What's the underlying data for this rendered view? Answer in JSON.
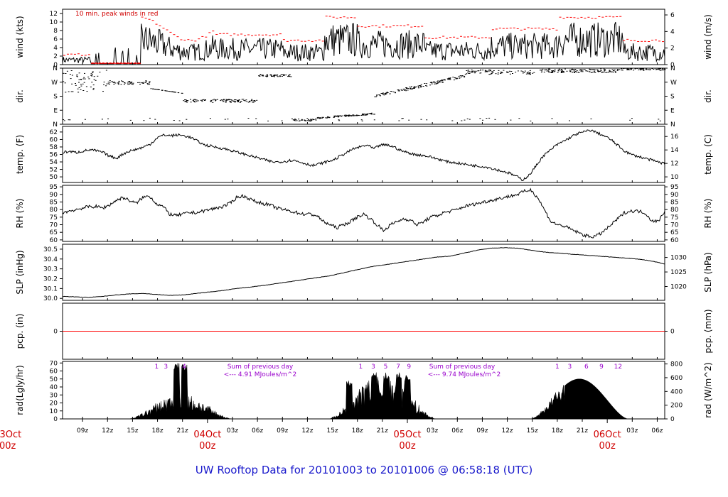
{
  "title": "UW Rooftop Data for 20101003  to  20101006 @ 06:58:18  (UTC)",
  "annotations": {
    "wind_note": "10 min. peak winds in red",
    "solar_days": [
      {
        "sum_label": "Sum of previous day",
        "value_label": "<--- 4.91 MJoules/m^2"
      },
      {
        "sum_label": "Sum of previous day",
        "value_label": "<--- 9.74 MJoules/m^2"
      }
    ],
    "hour_markers": [
      [
        "1",
        "3",
        "4"
      ],
      [
        "1",
        "3",
        "5",
        "7",
        "9"
      ],
      [
        "1",
        "3",
        "6",
        "9",
        "12"
      ]
    ]
  },
  "chart_data": {
    "type": "line",
    "x_axis": {
      "tick_labels": [
        "09z",
        "12z",
        "15z",
        "18z",
        "21z",
        "03z",
        "06z",
        "09z",
        "12z",
        "15z",
        "18z",
        "21z",
        "03z",
        "06z",
        "09z",
        "12z",
        "15z",
        "18z",
        "21z",
        "03z",
        "06z"
      ],
      "date_labels": [
        {
          "date": "03Oct",
          "hour": "00z"
        },
        {
          "date": "04Oct",
          "hour": "00z"
        },
        {
          "date": "05Oct",
          "hour": "00z"
        },
        {
          "date": "06Oct",
          "hour": "00z"
        }
      ]
    },
    "panels": [
      {
        "id": "wind",
        "ylabel_left": "wind (kts)",
        "ylabel_right": "wind (m/s)",
        "ylim": [
          0,
          13
        ],
        "left_ticks": [
          "0",
          "2",
          "4",
          "6",
          "8",
          "10",
          "12"
        ],
        "right_ticks": [
          "0",
          "2",
          "4",
          "6"
        ],
        "colors": {
          "series": "#000000",
          "peak": "#ff0000"
        }
      },
      {
        "id": "dir",
        "ylabel_left": "dir.",
        "ylabel_right": "dir.",
        "ylim": [
          0,
          360
        ],
        "left_ticks": [
          "N",
          "E",
          "S",
          "W",
          "N"
        ],
        "right_ticks": [
          "N",
          "E",
          "S",
          "W",
          "N"
        ]
      },
      {
        "id": "temp",
        "ylabel_left": "temp. (F)",
        "ylabel_right": "temp. (C)",
        "ylim": [
          48.5,
          63.5
        ],
        "left_ticks": [
          "50",
          "52",
          "54",
          "56",
          "58",
          "60",
          "62"
        ],
        "right_ticks": [
          "10",
          "12",
          "14",
          "16"
        ],
        "series": [
          {
            "values": [
              56.5,
              56.8,
              56.5,
              56.9,
              57.2,
              57.0,
              56.5,
              55.5,
              55.0,
              56.2,
              57.0,
              57.4,
              58.0,
              58.8,
              60.5,
              61.2,
              61.0,
              61.2,
              61.0,
              60.5,
              59.5,
              58.5,
              58.2,
              57.8,
              57.5,
              57.0,
              56.5,
              56.0,
              55.5,
              55.0,
              54.5,
              54.0,
              54.0,
              54.2,
              54.5,
              54.0,
              53.5,
              53.0,
              53.5,
              54.0,
              54.5,
              55.5,
              56.5,
              57.5,
              58.0,
              58.5,
              57.5,
              58.5,
              58.5,
              58.0,
              57.0,
              56.5,
              56.0,
              55.8,
              55.5,
              55.0,
              54.5,
              54.0,
              53.8,
              53.5,
              53.2,
              53.0,
              52.8,
              52.5,
              52.0,
              51.5,
              51.0,
              50.2,
              49.2,
              50.5,
              53.0,
              55.5,
              57.0,
              58.5,
              59.5,
              60.5,
              61.5,
              62.0,
              62.5,
              61.8,
              61.0,
              60.0,
              58.5,
              57.0,
              56.0,
              55.5,
              55.0,
              54.5,
              54.0,
              53.5
            ]
          }
        ]
      },
      {
        "id": "rh",
        "ylabel_left": "RH (%)",
        "ylabel_right": "RH (%)",
        "ylim": [
          59,
          96
        ],
        "left_ticks": [
          "60",
          "65",
          "70",
          "75",
          "80",
          "85",
          "90",
          "95"
        ],
        "right_ticks": [
          "60",
          "65",
          "70",
          "75",
          "80",
          "85",
          "90",
          "95"
        ],
        "series": [
          {
            "values": [
              78,
              79,
              80,
              81,
              82,
              82,
              81,
              83,
              86,
              88,
              86,
              84,
              88,
              89,
              84,
              82,
              77,
              76,
              77,
              78,
              78,
              79,
              80,
              81,
              82,
              84,
              88,
              89,
              87,
              85,
              84,
              83,
              81,
              80,
              79,
              78,
              77,
              77,
              76,
              72,
              70,
              68,
              70,
              72,
              75,
              77,
              74,
              70,
              66,
              70,
              72,
              74,
              73,
              70,
              72,
              75,
              76,
              78,
              79,
              80,
              82,
              83,
              84,
              85,
              86,
              87,
              88,
              89,
              90,
              92,
              93,
              88,
              80,
              72,
              70,
              69,
              67,
              65,
              63,
              62,
              63,
              66,
              70,
              74,
              78,
              79,
              79,
              78,
              73,
              72,
              79
            ]
          }
        ]
      },
      {
        "id": "slp",
        "ylabel_left": "SLP (inHg)",
        "ylabel_right": "SLP (hPa)",
        "ylim": [
          29.98,
          30.55
        ],
        "left_ticks": [
          "30.0",
          "30.1",
          "30.2",
          "30.3",
          "30.4",
          "30.5"
        ],
        "right_ticks": [
          "1020",
          "1025",
          "1030"
        ],
        "series": [
          {
            "values": [
              30.02,
              30.015,
              30.01,
              30.02,
              30.035,
              30.045,
              30.05,
              30.04,
              30.03,
              30.035,
              30.05,
              30.065,
              30.08,
              30.1,
              30.115,
              30.13,
              30.15,
              30.17,
              30.19,
              30.21,
              30.23,
              30.26,
              30.29,
              30.32,
              30.34,
              30.36,
              30.38,
              30.4,
              30.42,
              30.43,
              30.46,
              30.49,
              30.51,
              30.515,
              30.51,
              30.49,
              30.47,
              30.46,
              30.45,
              30.44,
              30.43,
              30.42,
              30.41,
              30.4,
              30.38,
              30.35
            ]
          }
        ]
      },
      {
        "id": "pcp",
        "ylabel_left": "pcp. (in)",
        "ylabel_right": "pcp. (mm)",
        "ylim": [
          -1,
          1
        ],
        "left_ticks": [
          "0"
        ],
        "right_ticks": [
          "0"
        ],
        "colors": {
          "zero_line": "#ff0000"
        }
      },
      {
        "id": "rad",
        "ylabel_left": "rad(Lgly/hr)",
        "ylabel_right": "rad (W/m^2)",
        "ylim": [
          0,
          72
        ],
        "left_ticks": [
          "0",
          "10",
          "20",
          "30",
          "40",
          "50",
          "60",
          "70"
        ],
        "right_ticks": [
          "0",
          "200",
          "400",
          "600",
          "800"
        ]
      }
    ]
  }
}
